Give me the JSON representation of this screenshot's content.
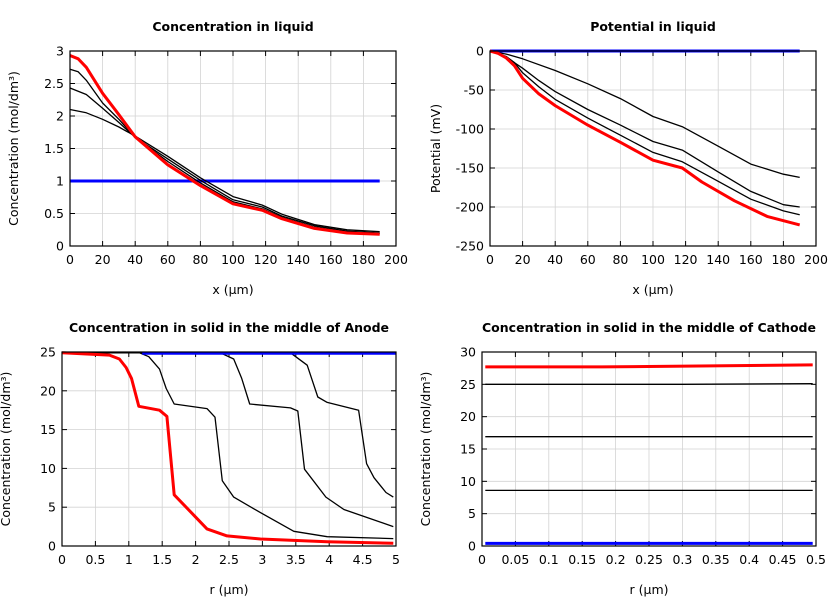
{
  "chart_data": [
    {
      "type": "line",
      "title": "Concentration in liquid",
      "xlabel": "x (µm)",
      "ylabel": "Concentration (mol/dm³)",
      "xlim": [
        0,
        200
      ],
      "ylim": [
        0,
        3
      ],
      "xticks": [
        "0",
        "20",
        "40",
        "60",
        "80",
        "100",
        "120",
        "140",
        "160",
        "180",
        "200"
      ],
      "yticks": [
        "0",
        "0.5",
        "1",
        "1.5",
        "2",
        "2.5",
        "3"
      ],
      "grid": true,
      "series": [
        {
          "color": "#0000ff",
          "x": [
            0,
            190
          ],
          "y": [
            1.0,
            1.0
          ]
        },
        {
          "color": "#000000",
          "x": [
            0,
            10,
            20,
            30,
            40,
            60,
            80,
            100,
            118,
            130,
            150,
            170,
            190
          ],
          "y": [
            2.1,
            2.05,
            1.95,
            1.83,
            1.69,
            1.38,
            1.05,
            0.76,
            0.63,
            0.49,
            0.33,
            0.25,
            0.22
          ]
        },
        {
          "color": "#000000",
          "x": [
            0,
            10,
            20,
            30,
            40,
            60,
            80,
            100,
            118,
            130,
            150,
            170,
            190
          ],
          "y": [
            2.43,
            2.33,
            2.12,
            1.9,
            1.67,
            1.34,
            1.01,
            0.71,
            0.6,
            0.46,
            0.31,
            0.23,
            0.2
          ]
        },
        {
          "color": "#000000",
          "x": [
            0,
            5,
            10,
            20,
            30,
            40,
            60,
            80,
            100,
            118,
            130,
            150,
            170,
            190
          ],
          "y": [
            2.72,
            2.68,
            2.55,
            2.2,
            1.95,
            1.67,
            1.3,
            0.97,
            0.68,
            0.57,
            0.44,
            0.29,
            0.21,
            0.19
          ]
        },
        {
          "color": "#ff0000",
          "x": [
            0,
            5,
            10,
            20,
            30,
            40,
            60,
            80,
            100,
            118,
            130,
            150,
            170,
            190
          ],
          "y": [
            2.93,
            2.88,
            2.75,
            2.35,
            2.02,
            1.68,
            1.25,
            0.93,
            0.65,
            0.55,
            0.42,
            0.27,
            0.2,
            0.18
          ]
        }
      ]
    },
    {
      "type": "line",
      "title": "Potential in liquid",
      "xlabel": "x (µm)",
      "ylabel": "Potential (mV)",
      "xlim": [
        0,
        200
      ],
      "ylim": [
        -250,
        0
      ],
      "xticks": [
        "0",
        "20",
        "40",
        "60",
        "80",
        "100",
        "120",
        "140",
        "160",
        "180",
        "200"
      ],
      "yticks": [
        "-250",
        "-200",
        "-150",
        "-100",
        "-50",
        "0"
      ],
      "grid": true,
      "series": [
        {
          "color": "#0000ff",
          "x": [
            0,
            190
          ],
          "y": [
            0,
            0
          ]
        },
        {
          "color": "#000000",
          "x": [
            0,
            10,
            20,
            40,
            60,
            80,
            100,
            118,
            140,
            160,
            180,
            190
          ],
          "y": [
            0,
            -4,
            -10,
            -25,
            -42,
            -61,
            -84,
            -97,
            -122,
            -145,
            -158,
            -162
          ]
        },
        {
          "color": "#000000",
          "x": [
            0,
            10,
            20,
            30,
            40,
            60,
            80,
            100,
            118,
            140,
            160,
            180,
            190
          ],
          "y": [
            0,
            -8,
            -22,
            -38,
            -52,
            -75,
            -95,
            -116,
            -127,
            -155,
            -180,
            -197,
            -200
          ]
        },
        {
          "color": "#000000",
          "x": [
            0,
            10,
            15,
            20,
            30,
            40,
            60,
            80,
            100,
            118,
            140,
            160,
            180,
            190
          ],
          "y": [
            0,
            -7,
            -15,
            -28,
            -46,
            -62,
            -86,
            -108,
            -130,
            -142,
            -167,
            -190,
            -205,
            -210
          ]
        },
        {
          "color": "#ff0000",
          "x": [
            0,
            5,
            10,
            15,
            20,
            30,
            40,
            60,
            80,
            100,
            118,
            130,
            150,
            170,
            190
          ],
          "y": [
            0,
            -3,
            -9,
            -19,
            -35,
            -55,
            -70,
            -95,
            -117,
            -140,
            -150,
            -168,
            -192,
            -212,
            -223
          ]
        }
      ]
    },
    {
      "type": "line",
      "title": "Concentration in solid in the middle of Anode",
      "xlabel": "r (µm)",
      "ylabel": "Concentration (mol/dm³)",
      "xlim": [
        0,
        5
      ],
      "ylim": [
        0,
        25
      ],
      "xticks": [
        "0",
        "0.5",
        "1",
        "1.5",
        "2",
        "2.5",
        "3",
        "3.5",
        "4",
        "4.5",
        "5"
      ],
      "yticks": [
        "0",
        "5",
        "10",
        "15",
        "20",
        "25"
      ],
      "grid": true,
      "series": [
        {
          "color": "#000000",
          "x": [
            0,
            3.42,
            3.67,
            3.83,
            3.97,
            4.44,
            4.56,
            4.67,
            4.85,
            4.96
          ],
          "y": [
            24.9,
            24.9,
            23.3,
            19.2,
            18.5,
            17.5,
            10.6,
            8.8,
            6.9,
            6.3
          ]
        },
        {
          "color": "#000000",
          "x": [
            0,
            2.37,
            2.57,
            2.69,
            2.81,
            3.42,
            3.53,
            3.63,
            3.95,
            4.22,
            4.96
          ],
          "y": [
            24.9,
            24.9,
            24.1,
            21.6,
            18.3,
            17.8,
            17.4,
            9.9,
            6.3,
            4.7,
            2.5
          ]
        },
        {
          "color": "#000000",
          "x": [
            0,
            1.16,
            1.3,
            1.46,
            1.56,
            1.68,
            2.17,
            2.29,
            2.4,
            2.57,
            2.97,
            3.47,
            3.97,
            4.96
          ],
          "y": [
            24.9,
            24.9,
            24.4,
            22.8,
            20.3,
            18.3,
            17.7,
            16.6,
            8.4,
            6.3,
            4.3,
            1.9,
            1.2,
            0.95
          ]
        },
        {
          "color": "#0000ff",
          "x": [
            1.2,
            5
          ],
          "y": [
            24.85,
            24.85
          ]
        },
        {
          "color": "#ff0000",
          "x": [
            0,
            0.71,
            0.86,
            0.96,
            1.04,
            1.15,
            1.46,
            1.57,
            1.68,
            2.17,
            2.47,
            2.97,
            3.97,
            4.96
          ],
          "y": [
            24.9,
            24.6,
            24.1,
            23,
            21.6,
            18,
            17.5,
            16.7,
            6.6,
            2.2,
            1.3,
            0.9,
            0.55,
            0.35
          ]
        }
      ]
    },
    {
      "type": "line",
      "title": "Concentration in solid in the middle of Cathode",
      "xlabel": "r (µm)",
      "ylabel": "Concentration (mol/dm³)",
      "xlim": [
        0,
        0.5
      ],
      "ylim": [
        0,
        30
      ],
      "xticks": [
        "0",
        "0.05",
        "0.1",
        "0.15",
        "0.2",
        "0.25",
        "0.3",
        "0.35",
        "0.4",
        "0.45",
        "0.5"
      ],
      "yticks": [
        "0",
        "5",
        "10",
        "15",
        "20",
        "25",
        "30"
      ],
      "grid": true,
      "series": [
        {
          "color": "#000000",
          "x": [
            0.005,
            0.495
          ],
          "y": [
            8.6,
            8.6
          ]
        },
        {
          "color": "#000000",
          "x": [
            0.005,
            0.495
          ],
          "y": [
            16.9,
            16.9
          ]
        },
        {
          "color": "#000000",
          "x": [
            0.005,
            0.3,
            0.495
          ],
          "y": [
            25.0,
            25.0,
            25.1
          ]
        },
        {
          "color": "#0000ff",
          "x": [
            0.005,
            0.495
          ],
          "y": [
            0.4,
            0.4
          ]
        },
        {
          "color": "#ff0000",
          "x": [
            0.005,
            0.18,
            0.495
          ],
          "y": [
            27.7,
            27.7,
            28.0
          ]
        }
      ]
    }
  ]
}
